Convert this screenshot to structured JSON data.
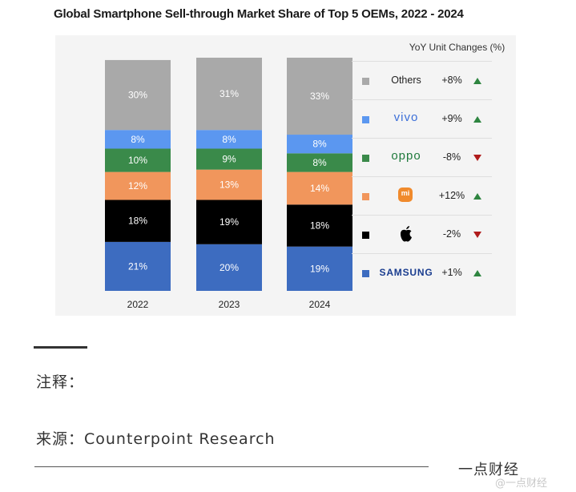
{
  "chart_data": {
    "type": "bar",
    "stacked": true,
    "title": "Global Smartphone Sell-through Market Share of Top 5 OEMs, 2022 - 2024",
    "categories": [
      "2022",
      "2023",
      "2024"
    ],
    "series": [
      {
        "name": "Samsung",
        "color": "#3d6cc0",
        "values": [
          21,
          20,
          19
        ]
      },
      {
        "name": "Apple",
        "color": "#000000",
        "values": [
          18,
          19,
          18
        ]
      },
      {
        "name": "Xiaomi",
        "color": "#f1965c",
        "values": [
          12,
          13,
          14
        ]
      },
      {
        "name": "OPPO",
        "color": "#3a8a4a",
        "values": [
          10,
          9,
          8
        ]
      },
      {
        "name": "vivo",
        "color": "#5b97f0",
        "values": [
          8,
          8,
          8
        ]
      },
      {
        "name": "Others",
        "color": "#a9a9a9",
        "values": [
          30,
          31,
          33
        ]
      }
    ],
    "value_labels": [
      [
        "21%",
        "20%",
        "19%"
      ],
      [
        "18%",
        "19%",
        "18%"
      ],
      [
        "12%",
        "13%",
        "14%"
      ],
      [
        "10%",
        "9%",
        "8%"
      ],
      [
        "8%",
        "8%",
        "8%"
      ],
      [
        "30%",
        "31%",
        "33%"
      ]
    ],
    "ylim": [
      0,
      100
    ],
    "grid": false,
    "legend": {
      "header": "YoY Unit Changes (%)",
      "placement": "right",
      "items": [
        {
          "name": "Others",
          "label": "Others",
          "change": "+8%",
          "trend": "up",
          "color": "#a9a9a9",
          "logo": "text"
        },
        {
          "name": "vivo",
          "label": "vivo",
          "change": "+9%",
          "trend": "up",
          "color": "#5b97f0",
          "logo": "vivo-wordmark"
        },
        {
          "name": "OPPO",
          "label": "oppo",
          "change": "-8%",
          "trend": "down",
          "color": "#3a8a4a",
          "logo": "oppo-wordmark"
        },
        {
          "name": "Xiaomi",
          "label": "mi",
          "change": "+12%",
          "trend": "up",
          "color": "#f1965c",
          "logo": "xiaomi-logo"
        },
        {
          "name": "Apple",
          "label": "",
          "change": "-2%",
          "trend": "down",
          "color": "#000000",
          "logo": "apple-logo"
        },
        {
          "name": "Samsung",
          "label": "SAMSUNG",
          "change": "+1%",
          "trend": "up",
          "color": "#3d6cc0",
          "logo": "samsung-wordmark"
        }
      ]
    }
  },
  "notes": {
    "note_label": "注释：",
    "source_label": "来源：Counterpoint Research",
    "footer_brand": "一点财经",
    "watermark": "@一点财经"
  }
}
